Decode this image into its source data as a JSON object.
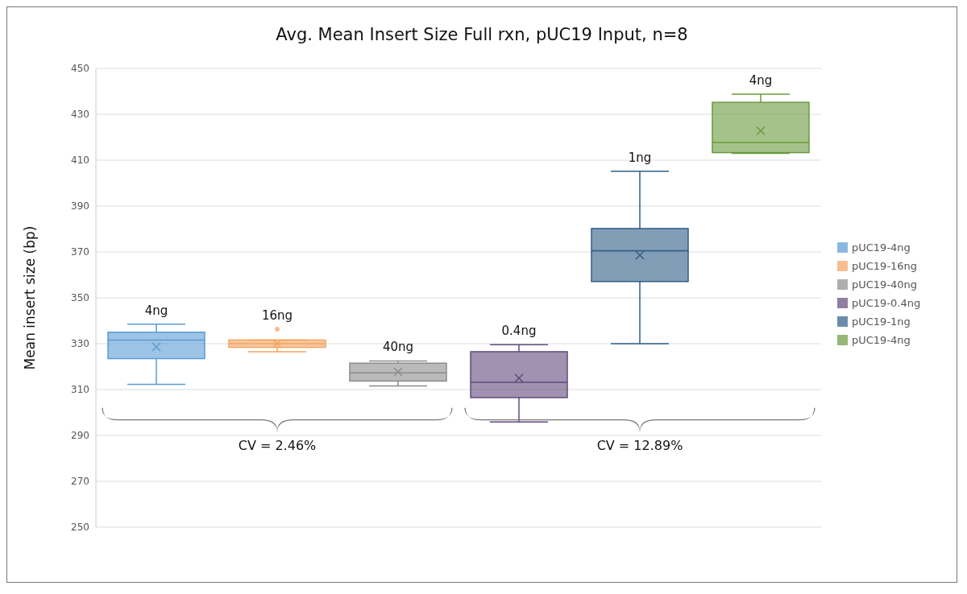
{
  "chart_data": {
    "type": "box",
    "title": "Avg. Mean Insert Size Full rxn, pUC19 Input, n=8",
    "ylabel": "Mean insert size (bp)",
    "categories": [
      null,
      null,
      null,
      null,
      null,
      null
    ],
    "ylim": [
      250,
      450
    ],
    "yticks": [
      250,
      270,
      290,
      310,
      330,
      350,
      370,
      390,
      410,
      430,
      450
    ],
    "grid": "y",
    "legend": "right",
    "series": [
      {
        "name": "pUC19-4ng",
        "color": "#5b9bd5",
        "boxes": [
          {
            "low": 312.3,
            "q1": 323.5,
            "median": 331.6,
            "q3": 335,
            "high": 338.5,
            "mean": 328.6
          },
          null,
          null,
          null,
          null,
          null
        ]
      },
      {
        "name": "pUC19-16ng",
        "color": "#f4a460",
        "boxes": [
          null,
          {
            "low": 326.5,
            "q1": 328.4,
            "median": 330,
            "q3": 331.6,
            "high": 331.6,
            "mean": 330,
            "outliers": [
              336.3
            ]
          },
          null,
          null,
          null,
          null
        ]
      },
      {
        "name": "pUC19-40ng",
        "color": "#8c8c8c",
        "boxes": [
          null,
          null,
          {
            "low": 311.6,
            "q1": 313.7,
            "median": 317.3,
            "q3": 321.5,
            "high": 322.5,
            "mean": 317.7
          },
          null,
          null,
          null
        ]
      },
      {
        "name": "pUC19-0.4ng",
        "color": "#604a7b",
        "boxes": [
          null,
          null,
          null,
          {
            "low": 295.9,
            "q1": 306.5,
            "median": 313.2,
            "q3": 326.5,
            "high": 329.6,
            "mean": 315
          },
          null,
          null
        ]
      },
      {
        "name": "pUC19-1ng",
        "color": "#2e5d86",
        "boxes": [
          null,
          null,
          null,
          null,
          {
            "low": 330,
            "q1": 357.1,
            "median": 370.5,
            "q3": 380.2,
            "high": 405.2,
            "mean": 368.6
          },
          null
        ]
      },
      {
        "name": "pUC19-4ng",
        "color": "#6a9a3d",
        "boxes": [
          null,
          null,
          null,
          null,
          null,
          {
            "low": 413,
            "q1": 413.3,
            "median": 417.7,
            "q3": 435.2,
            "high": 438.8,
            "mean": 422.8
          }
        ]
      }
    ],
    "annotations": [
      {
        "text": "4ng",
        "y": 338.5
      },
      {
        "text": "16ng",
        "y": 331.6
      },
      {
        "text": "40ng",
        "y": 322.5
      },
      {
        "text": "0.4ng",
        "y": 329.6
      },
      {
        "text": "1ng",
        "y": 405.2
      },
      {
        "text": "4ng",
        "y": 438.8
      },
      "CV = 2.46%",
      "CV = 12.89%"
    ]
  }
}
